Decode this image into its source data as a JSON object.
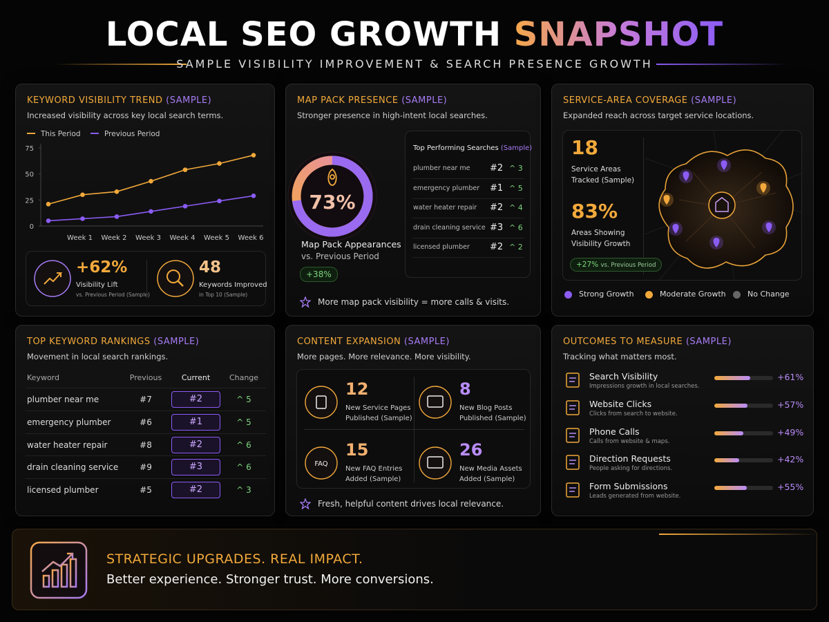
{
  "header": {
    "title": "LOCAL SEO GROWTH",
    "title_accent": "SNAPSHOT",
    "subtitle": "SAMPLE VISIBILITY IMPROVEMENT & SEARCH PRESENCE GROWTH"
  },
  "chart_data": {
    "type": "line",
    "title": "KEYWORD VISIBILITY TREND",
    "title_tag": "(SAMPLE)",
    "subtitle": "Increased visibility across key local search terms.",
    "categories": [
      null,
      "Week 1",
      "Week 2",
      "Week 3",
      "Week 4",
      "Week 5",
      "Week 6"
    ],
    "series": [
      {
        "name": "This Period",
        "color": "#f2a93b",
        "values": [
          21,
          30,
          33,
          43,
          54,
          60,
          68
        ]
      },
      {
        "name": "Previous Period",
        "color": "#8b5cf6",
        "values": [
          5,
          7,
          9,
          14,
          19,
          24,
          29
        ]
      }
    ],
    "ylim": [
      0,
      75
    ],
    "yticks": [
      0,
      25,
      50,
      75
    ],
    "grid": false,
    "legend": "top-left"
  },
  "visibility_stats": [
    {
      "value": "+62%",
      "label": "Visibility Lift",
      "note": "vs. Previous Period (Sample)"
    },
    {
      "value": "48",
      "label": "Keywords Improved",
      "note": "in Top 10 (Sample)"
    }
  ],
  "map_pack": {
    "title": "MAP PACK PRESENCE",
    "title_tag": "(SAMPLE)",
    "subtitle": "Stronger presence in high-intent local searches.",
    "share": 73,
    "share_label": "73%",
    "metric": "Map Pack Appearances",
    "metric_note": "vs. Previous Period",
    "change": "+38%",
    "top_searches": {
      "title": "Top Performing Searches",
      "title_tag": "(Sample)",
      "rows": [
        [
          "plumber near me",
          "#2",
          "^ 3"
        ],
        [
          "emergency plumber",
          "#1",
          "^ 5"
        ],
        [
          "water heater repair",
          "#2",
          "^ 4"
        ],
        [
          "drain cleaning service",
          "#3",
          "^ 6"
        ],
        [
          "licensed plumber",
          "#2",
          "^ 2"
        ]
      ]
    },
    "footnote": "More map pack visibility = more calls & visits."
  },
  "service_area": {
    "title": "SERVICE-AREA COVERAGE",
    "title_tag": "(SAMPLE)",
    "subtitle": "Expanded reach across target service locations.",
    "stats": [
      {
        "value": "18",
        "label": "Service Areas Tracked (Sample)"
      },
      {
        "value": "83%",
        "label": "Areas Showing Visibility Growth"
      }
    ],
    "change": "+27%",
    "change_note": "vs. Previous Period",
    "legend": [
      {
        "name": "Strong Growth",
        "color": "#8b5cf6"
      },
      {
        "name": "Moderate Growth",
        "color": "#f2a93b"
      },
      {
        "name": "No Change",
        "color": "#666666"
      }
    ]
  },
  "rankings": {
    "title": "TOP KEYWORD RANKINGS",
    "title_tag": "(SAMPLE)",
    "subtitle": "Movement in local search rankings.",
    "columns": [
      "Keyword",
      "Previous",
      "Current",
      "Change"
    ],
    "rows": [
      [
        "plumber near me",
        "#7",
        "#2",
        "^ 5"
      ],
      [
        "emergency plumber",
        "#6",
        "#1",
        "^ 5"
      ],
      [
        "water heater repair",
        "#8",
        "#2",
        "^ 6"
      ],
      [
        "drain cleaning service",
        "#9",
        "#3",
        "^ 6"
      ],
      [
        "licensed plumber",
        "#5",
        "#2",
        "^ 3"
      ]
    ]
  },
  "content": {
    "title": "CONTENT EXPANSION",
    "title_tag": "(SAMPLE)",
    "subtitle": "More pages. More relevance. More visibility.",
    "faq_icon": "FAQ",
    "items": [
      {
        "value": "12",
        "label": "New Service Pages Published (Sample)"
      },
      {
        "value": "8",
        "label": "New Blog Posts Published (Sample)"
      },
      {
        "value": "15",
        "label": "New FAQ Entries Added (Sample)"
      },
      {
        "value": "26",
        "label": "New Media Assets Added (Sample)"
      }
    ],
    "footnote": "Fresh, helpful content drives local relevance."
  },
  "outcomes": {
    "title": "OUTCOMES TO MEASURE",
    "title_tag": "(SAMPLE)",
    "subtitle": "Tracking what matters most.",
    "items": [
      {
        "name": "Search Visibility",
        "note": "Impressions growth in local searches.",
        "value": 61,
        "value_label": "+61%"
      },
      {
        "name": "Website Clicks",
        "note": "Clicks from search to website.",
        "value": 57,
        "value_label": "+57%"
      },
      {
        "name": "Phone Calls",
        "note": "Calls from website & maps.",
        "value": 49,
        "value_label": "+49%"
      },
      {
        "name": "Direction Requests",
        "note": "People asking for directions.",
        "value": 42,
        "value_label": "+42%"
      },
      {
        "name": "Form Submissions",
        "note": "Leads generated from website.",
        "value": 55,
        "value_label": "+55%"
      }
    ]
  },
  "banner": {
    "title": "STRATEGIC UPGRADES. REAL IMPACT.",
    "text": "Better experience. Stronger trust. More conversions."
  }
}
